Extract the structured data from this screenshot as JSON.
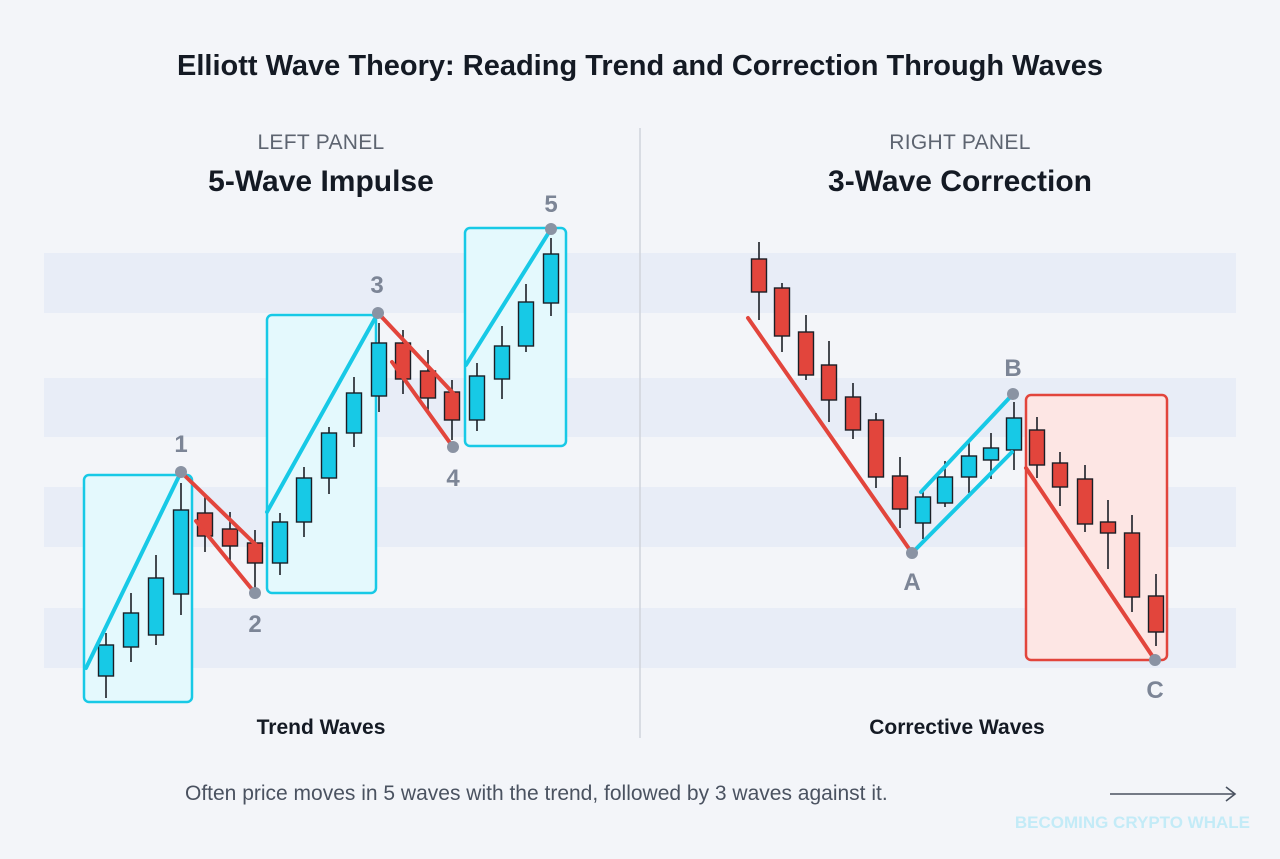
{
  "title": "Elliott Wave Theory: Reading Trend and Correction Through Waves",
  "left_panel": {
    "kicker": "LEFT PANEL",
    "title": "5-Wave Impulse",
    "footer": "Trend Waves",
    "wave_labels": [
      "1",
      "2",
      "3",
      "4",
      "5"
    ]
  },
  "right_panel": {
    "kicker": "RIGHT PANEL",
    "title": "3-Wave Correction",
    "footer": "Corrective Waves",
    "wave_labels": [
      "A",
      "B",
      "C"
    ]
  },
  "caption": "Often price moves in 5 waves with the trend, followed by 3 waves against it.",
  "watermark": "BECOMING CRYPTO WHALE",
  "colors": {
    "bullish": "#17c9e6",
    "bearish": "#e2453c",
    "pivot": "#8a93a3",
    "band": "#e8edf7"
  }
}
